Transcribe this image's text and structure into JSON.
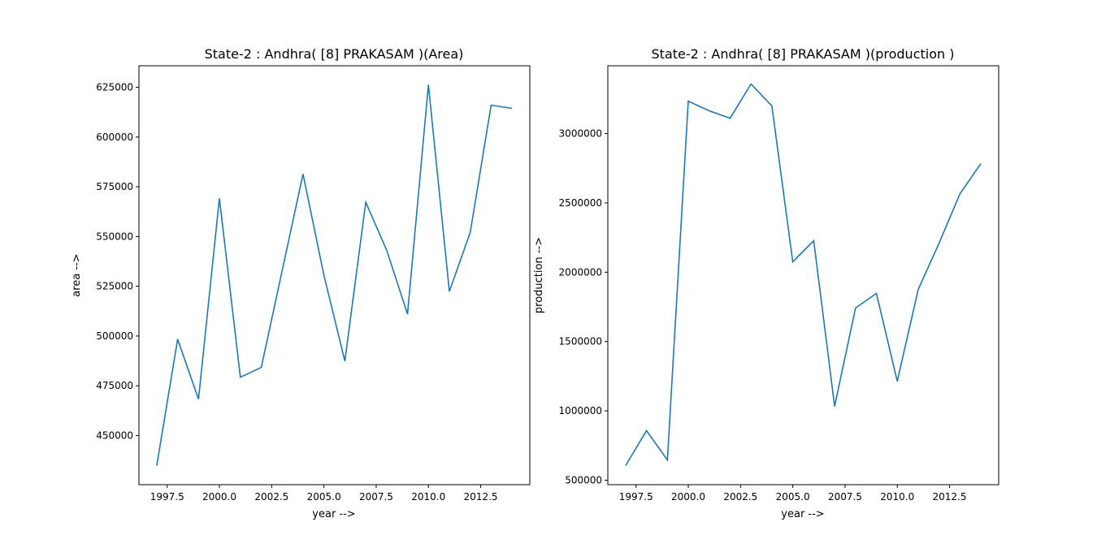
{
  "chart_data": [
    {
      "type": "line",
      "title": "State-2 : Andhra( [8] PRAKASAM )(Area)",
      "xlabel": "year -->",
      "ylabel": "area -->",
      "x": [
        1997,
        1998,
        1999,
        2000,
        2001,
        2002,
        2003,
        2004,
        2005,
        2006,
        2007,
        2008,
        2009,
        2010,
        2011,
        2012,
        2013,
        2014
      ],
      "series": [
        {
          "name": "area",
          "color": "#1f77b4",
          "values": [
            434900,
            498400,
            468300,
            569200,
            479300,
            484200,
            532800,
            581400,
            530600,
            487400,
            567200,
            543200,
            511000,
            626200,
            522400,
            552100,
            616000,
            614400
          ]
        }
      ],
      "xticks": [
        1997.5,
        2000.0,
        2002.5,
        2005.0,
        2007.5,
        2010.0,
        2012.5
      ],
      "xtick_labels": [
        "1997.5",
        "2000.0",
        "2002.5",
        "2005.0",
        "2007.5",
        "2010.0",
        "2012.5"
      ],
      "yticks": [
        450000,
        475000,
        500000,
        525000,
        550000,
        575000,
        600000,
        625000
      ],
      "ytick_labels": [
        "450000",
        "475000",
        "500000",
        "525000",
        "550000",
        "575000",
        "600000",
        "625000"
      ],
      "xlim": [
        1996.15,
        2014.85
      ],
      "ylim": [
        425300,
        635800
      ],
      "grid": false
    },
    {
      "type": "line",
      "title": "State-2 : Andhra( [8] PRAKASAM )(production )",
      "xlabel": "year -->",
      "ylabel": "production -->",
      "x": [
        1997,
        1998,
        1999,
        2000,
        2001,
        2002,
        2003,
        2004,
        2005,
        2006,
        2007,
        2008,
        2009,
        2010,
        2011,
        2012,
        2013,
        2014
      ],
      "series": [
        {
          "name": "production",
          "color": "#1f77b4",
          "values": [
            605400,
            857000,
            646000,
            3234000,
            3164000,
            3111000,
            3357000,
            3199000,
            2075000,
            2227000,
            1033000,
            1741000,
            1847000,
            1214000,
            1876000,
            2210000,
            2567000,
            2783000
          ]
        }
      ],
      "xticks": [
        1997.5,
        2000.0,
        2002.5,
        2005.0,
        2007.5,
        2010.0,
        2012.5
      ],
      "xtick_labels": [
        "1997.5",
        "2000.0",
        "2002.5",
        "2005.0",
        "2007.5",
        "2010.0",
        "2012.5"
      ],
      "yticks": [
        500000,
        1000000,
        1500000,
        2000000,
        2500000,
        3000000
      ],
      "ytick_labels": [
        "500000",
        "1000000",
        "1500000",
        "2000000",
        "2500000",
        "3000000"
      ],
      "xlim": [
        1996.15,
        2014.85
      ],
      "ylim": [
        467800,
        3489000
      ],
      "grid": false
    }
  ]
}
